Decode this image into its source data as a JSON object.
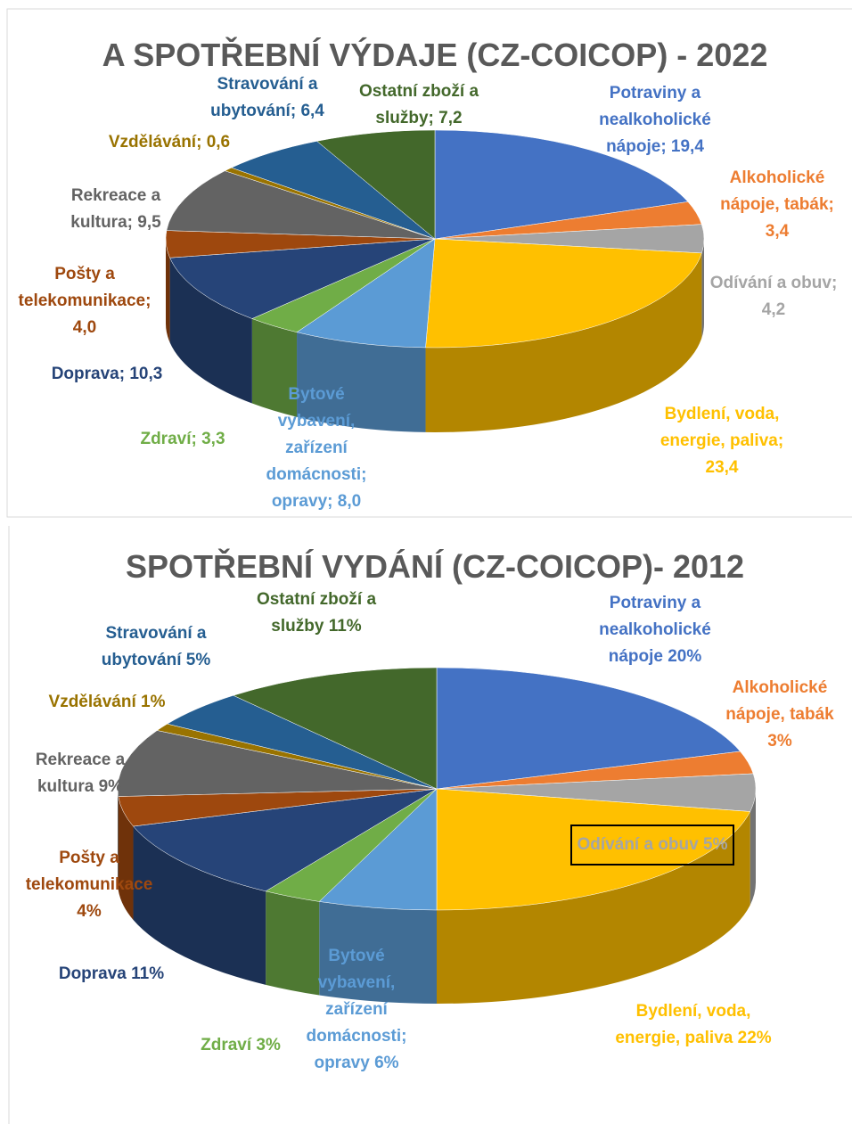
{
  "chart_data": [
    {
      "type": "pie",
      "title": "A SPOTŘEBNÍ VÝDAJE (CZ-COICOP) - 2022",
      "categories": [
        "Potraviny a nealkoholické nápoje",
        "Alkoholické nápoje, tabák",
        "Odívání a obuv",
        "Bydlení, voda, energie, paliva",
        "Bytové vybavení, zařízení domácnosti; opravy",
        "Zdraví",
        "Doprava",
        "Pošty a telekomunikace",
        "Rekreace a kultura",
        "Vzdělávání",
        "Stravování a ubytování",
        "Ostatní zboží a služby"
      ],
      "values": [
        19.4,
        3.4,
        4.2,
        23.4,
        8.0,
        3.3,
        10.3,
        4.0,
        9.5,
        0.6,
        6.4,
        7.2
      ],
      "value_labels": [
        "19,4",
        "3,4",
        "4,2",
        "23,4",
        "8,0",
        "3,3",
        "10,3",
        "4,0",
        "9,5",
        "0,6",
        "6,4",
        "7,2"
      ],
      "label_separator": ";",
      "colors": [
        "#4472c4",
        "#ed7d31",
        "#a5a5a5",
        "#ffc000",
        "#5b9bd5",
        "#70ad47",
        "#264478",
        "#9e480e",
        "#636363",
        "#997300",
        "#255e91",
        "#43682b"
      ]
    },
    {
      "type": "pie",
      "title": "SPOTŘEBNÍ VYDÁNÍ (CZ-COICOP)- 2012",
      "categories": [
        "Potraviny a nealkoholické nápoje",
        "Alkoholické nápoje, tabák",
        "Odívání a obuv",
        "Bydlení, voda, energie, paliva",
        "Bytové vybavení, zařízení domácnosti; opravy",
        "Zdraví",
        "Doprava",
        "Pošty a telekomunikace",
        "Rekreace a kultura",
        "Vzdělávání",
        "Stravování a ubytování",
        "Ostatní zboží a služby"
      ],
      "values": [
        20,
        3,
        5,
        22,
        6,
        3,
        11,
        4,
        9,
        1,
        5,
        11
      ],
      "value_labels": [
        "20%",
        "3%",
        "5%",
        "22%",
        "6%",
        "3%",
        "11%",
        "4%",
        "9%",
        "1%",
        "5%",
        "11%"
      ],
      "colors": [
        "#4472c4",
        "#ed7d31",
        "#a5a5a5",
        "#ffc000",
        "#5b9bd5",
        "#70ad47",
        "#264478",
        "#9e480e",
        "#636363",
        "#997300",
        "#255e91",
        "#43682b"
      ]
    }
  ]
}
